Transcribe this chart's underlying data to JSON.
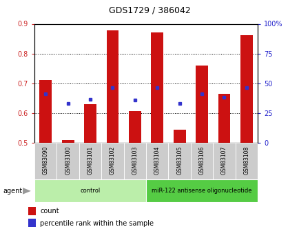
{
  "title": "GDS1729 / 386042",
  "samples": [
    "GSM83090",
    "GSM83100",
    "GSM83101",
    "GSM83102",
    "GSM83103",
    "GSM83104",
    "GSM83105",
    "GSM83106",
    "GSM83107",
    "GSM83108"
  ],
  "count_values": [
    0.71,
    0.51,
    0.63,
    0.878,
    0.606,
    0.872,
    0.545,
    0.76,
    0.665,
    0.862
  ],
  "percentile_values": [
    0.665,
    0.633,
    0.645,
    0.685,
    0.643,
    0.685,
    0.633,
    0.665,
    0.652,
    0.685
  ],
  "ylim_left": [
    0.5,
    0.9
  ],
  "ylim_right": [
    0,
    100
  ],
  "yticks_left": [
    0.5,
    0.6,
    0.7,
    0.8,
    0.9
  ],
  "yticks_right": [
    0,
    25,
    50,
    75,
    100
  ],
  "ytick_labels_right": [
    "0",
    "25",
    "50",
    "75",
    "100%"
  ],
  "bar_color": "#cc1111",
  "dot_color": "#3333cc",
  "bar_bottom": 0.5,
  "bar_width": 0.55,
  "groups": [
    {
      "label": "control",
      "indices": [
        0,
        1,
        2,
        3,
        4
      ],
      "color": "#bbeeaa"
    },
    {
      "label": "miR-122 antisense oligonucleotide",
      "indices": [
        5,
        6,
        7,
        8,
        9
      ],
      "color": "#55cc44"
    }
  ],
  "agent_label": "agent",
  "legend_count_label": "count",
  "legend_percentile_label": "percentile rank within the sample",
  "bg_color": "#ffffff",
  "tick_label_color_left": "#cc2222",
  "tick_label_color_right": "#2222cc",
  "sample_box_color": "#cccccc",
  "title_fontsize": 9,
  "tick_fontsize": 7,
  "label_fontsize": 5.5,
  "group_fontsize": 6,
  "legend_fontsize": 7,
  "agent_fontsize": 7
}
